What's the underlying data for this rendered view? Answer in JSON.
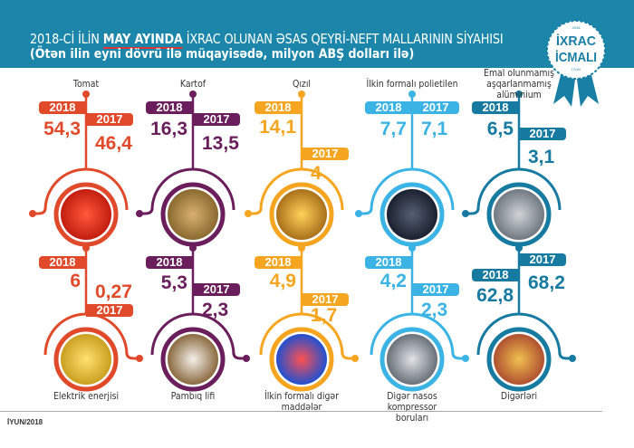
{
  "header": {
    "title_prefix": "2018-Cİ İLİN",
    "title_highlight": "MAY AYINDA",
    "title_suffix": "İXRAC OLUNAN ƏSAS QEYRİ-NEFT MALLARININ SİYAHISI",
    "subtitle": "(Ötən ilin eyni dövrü ilə müqayisədə, milyon ABŞ dolları ilə)",
    "logo_text": "İXRAC İCMALI",
    "logo_top": "2018",
    "logo_bottom": "İYUN",
    "background_color": "#1b86aa"
  },
  "year_2018": "2018",
  "year_2017": "2017",
  "items": [
    {
      "label": "Tomat",
      "v2018": "54,3",
      "v2017": "46,4",
      "color": "#e04a2b",
      "icon": "tomato-icon"
    },
    {
      "label": "Kartof",
      "v2018": "16,3",
      "v2017": "13,5",
      "color": "#6a1e5c",
      "icon": "potato-icon"
    },
    {
      "label": "Qızıl",
      "v2018": "14,1",
      "v2017": "4",
      "color": "#f5a51f",
      "icon": "gold-bars-icon"
    },
    {
      "label": "İlkin formalı polietilen",
      "v2018": "7,7",
      "v2017": "7,1",
      "color": "#3bb3e4",
      "icon": "polyethylene-granules-icon"
    },
    {
      "label": "Emal olunmamış aşqarlanmamış alüminium",
      "v2018": "6,5",
      "v2017": "3,1",
      "color": "#177aa0",
      "icon": "aluminium-icon"
    },
    {
      "label": "Elektrik enerjisi",
      "v2018": "6",
      "v2017": "0,27",
      "color": "#e04a2b",
      "icon": "light-bulb-icon"
    },
    {
      "label": "Pambıq lifi",
      "v2018": "5,3",
      "v2017": "2,3",
      "color": "#6a1e5c",
      "icon": "cotton-icon"
    },
    {
      "label": "İlkin formalı digər maddələr",
      "v2018": "4,9",
      "v2017": "1,7",
      "color": "#f5a51f",
      "icon": "plastic-pellets-icon"
    },
    {
      "label": "Digər nasos kompressor boruları",
      "v2018": "4,2",
      "v2017": "2,3",
      "color": "#3bb3e4",
      "icon": "steel-pipes-icon"
    },
    {
      "label": "Digərləri",
      "v2018": "62,8",
      "v2017": "68,2",
      "color": "#177aa0",
      "icon": "shipping-containers-icon"
    }
  ],
  "footer": "İYUN/2018"
}
